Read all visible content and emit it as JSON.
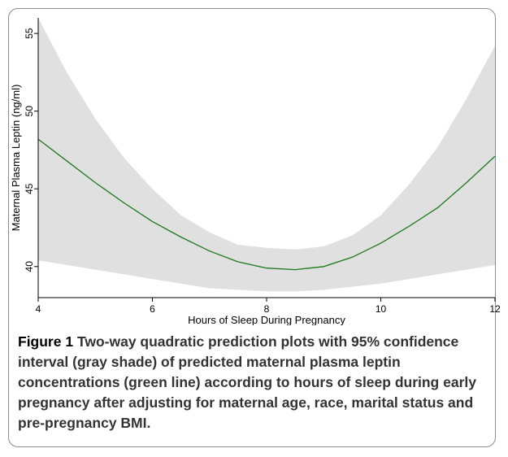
{
  "chart_data": {
    "type": "line",
    "title": "",
    "xlabel": "Hours of Sleep During Pregnancy",
    "ylabel": "Maternal Plasma Leptin (ng/ml)",
    "xlim": [
      4,
      12
    ],
    "ylim": [
      38,
      56
    ],
    "xticks": [
      4,
      6,
      8,
      10,
      12
    ],
    "yticks": [
      40,
      45,
      50,
      55
    ],
    "grid": false,
    "series": [
      {
        "role": "prediction",
        "color": "#1a7a1a",
        "x": [
          4,
          4.5,
          5,
          5.5,
          6,
          6.5,
          7,
          7.5,
          8,
          8.5,
          9,
          9.5,
          10,
          10.5,
          11,
          11.5,
          12
        ],
        "y": [
          48.2,
          46.8,
          45.4,
          44.1,
          42.9,
          41.9,
          41.0,
          40.3,
          39.9,
          39.8,
          40.0,
          40.6,
          41.5,
          42.6,
          43.8,
          45.4,
          47.1
        ]
      }
    ],
    "confidence_band": {
      "color": "#e0e0e0",
      "x": [
        4,
        4.5,
        5,
        5.5,
        6,
        6.5,
        7,
        7.5,
        8,
        8.5,
        9,
        9.5,
        10,
        10.5,
        11,
        11.5,
        12
      ],
      "upper": [
        56.0,
        52.5,
        49.5,
        47.0,
        45.0,
        43.3,
        42.2,
        41.4,
        41.2,
        41.1,
        41.3,
        42.0,
        43.3,
        45.3,
        47.7,
        50.8,
        54.2
      ],
      "lower": [
        40.4,
        40.1,
        39.8,
        39.5,
        39.2,
        38.9,
        38.6,
        38.5,
        38.4,
        38.4,
        38.5,
        38.7,
        38.9,
        39.2,
        39.5,
        39.8,
        40.1
      ]
    }
  },
  "caption": {
    "label": "Figure 1",
    "text": "Two-way quadratic prediction plots with 95% confidence interval (gray shade) of predicted maternal plasma leptin concentrations (green line) according to hours of sleep during early pregnancy after adjusting for maternal age, race, marital status and pre-pregnancy BMI."
  }
}
